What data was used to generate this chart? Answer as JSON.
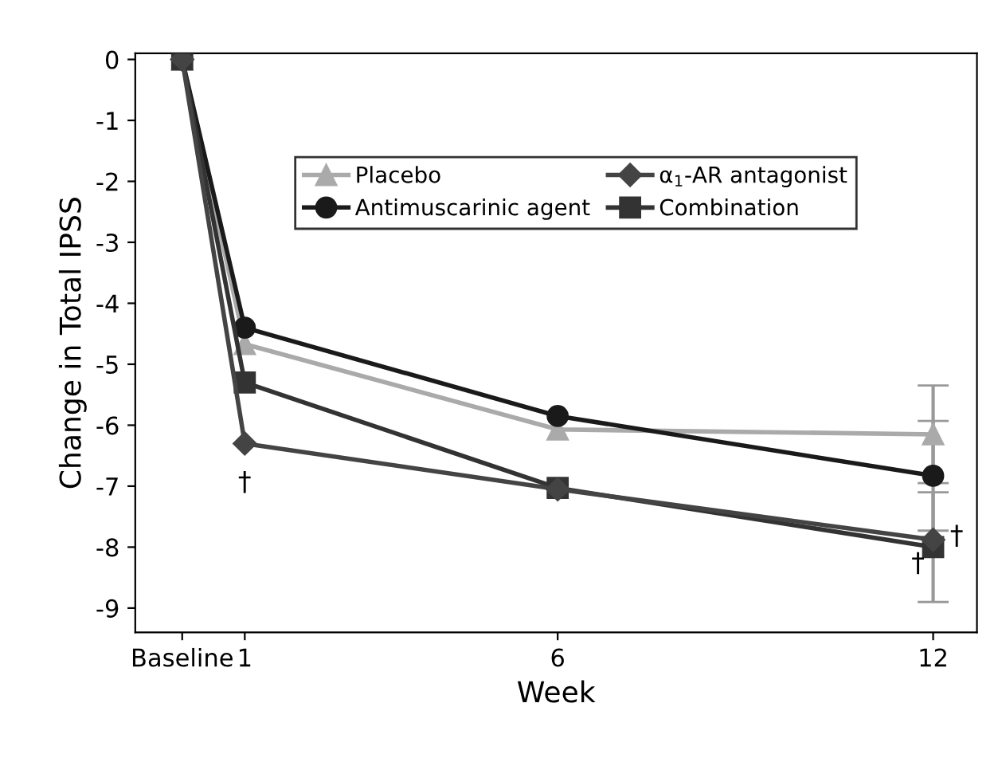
{
  "chart_data": {
    "type": "line",
    "xlabel": "Week",
    "ylabel": "Change in Total IPSS",
    "x": [
      0,
      1,
      6,
      12
    ],
    "xlim": [
      -0.75,
      12.7
    ],
    "xticks": [
      {
        "value": 0,
        "label": "Baseline"
      },
      1,
      6,
      12
    ],
    "ylim": [
      -9.4,
      0.1
    ],
    "yticks": [
      -9,
      -8,
      -7,
      -6,
      -5,
      -4,
      -3,
      -2,
      -1,
      0
    ],
    "series": [
      {
        "name": "Placebo",
        "color": "#aaaaaa",
        "marker": "triangle",
        "values": [
          0,
          -4.67,
          -6.07,
          -6.15
        ],
        "errors": [
          null,
          null,
          null,
          0.8
        ]
      },
      {
        "name": "Antimuscarinic agent",
        "color": "#1a1a1a",
        "marker": "circle",
        "values": [
          0,
          -4.4,
          -5.85,
          -6.83
        ],
        "errors": [
          null,
          null,
          null,
          0.9
        ]
      },
      {
        "name": "α$_{1}$-AR antagonist",
        "color": "#444444",
        "marker": "diamond",
        "values": [
          0,
          -6.3,
          -7.05,
          -7.88
        ]
      },
      {
        "name": "Combination",
        "color": "#333333",
        "marker": "square",
        "values": [
          0,
          -5.3,
          -7.03,
          -8.0
        ],
        "errors": [
          null,
          null,
          null,
          0.9
        ]
      }
    ],
    "annotations": [
      "†",
      "†",
      "†"
    ],
    "legend": "top right",
    "grid": false,
    "line_style": "solid"
  }
}
